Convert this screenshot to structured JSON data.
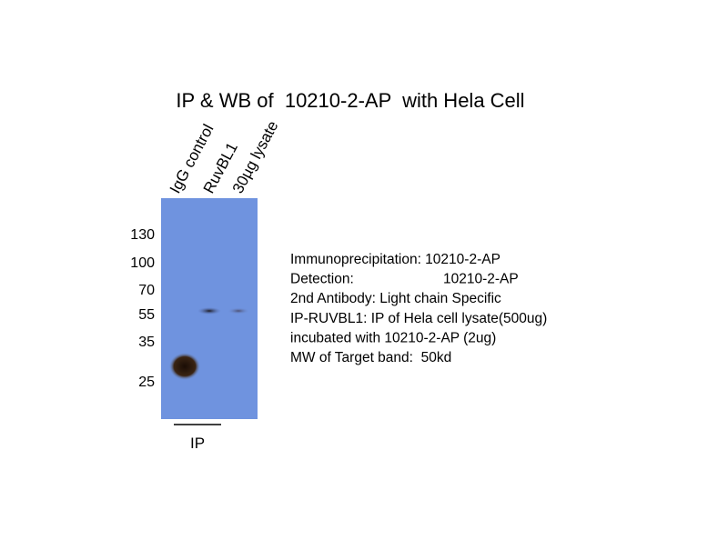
{
  "title": "IP & WB of  10210-2-AP  with Hela Cell",
  "lanes": [
    "IgG control",
    "RuvBL1",
    "30µg lysate"
  ],
  "markers": [
    "130",
    "100",
    "70",
    "55",
    "35",
    "25"
  ],
  "group_label": "IP",
  "description": [
    [
      "Immunoprecipitation: 10210-2-AP"
    ],
    [
      "Detection:",
      "10210-2-AP"
    ],
    [
      "2nd Antibody: Light chain Specific"
    ],
    [
      "IP-RUVBL1: IP of Hela cell lysate(500ug)"
    ],
    [
      "incubated with 10210-2-AP (2ug)"
    ],
    [
      "MW of Target band:  50kd"
    ]
  ]
}
